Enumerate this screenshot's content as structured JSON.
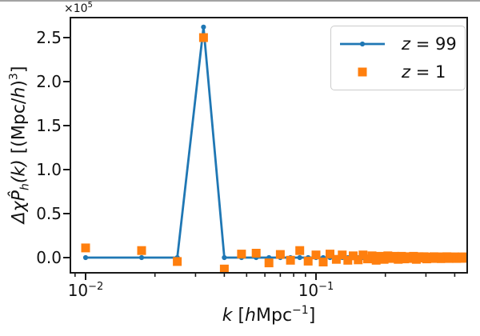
{
  "figure": {
    "offset_text": {
      "base": "×10",
      "exp": "5"
    },
    "xlabel": {
      "var1": "k",
      "mid1": " [",
      "var2": "h",
      "unit": "Mpc",
      "exp": "−1",
      "close": "]"
    },
    "ylabel": {
      "p1": "Δχ",
      "p2": "P̂",
      "sub": "h",
      "p3": "(k)",
      "p4": " [(Mpc/",
      "p5": "h",
      "p6": ")",
      "sup": "3",
      "p7": "]"
    },
    "legend": {
      "items": [
        {
          "var": "z",
          "rest": " = 99",
          "series": "z99"
        },
        {
          "var": "z",
          "rest": " = 1",
          "series": "z1"
        }
      ]
    },
    "colors": {
      "z99": "#1f77b4",
      "z1": "#ff7f0e",
      "spine": "#1a1a1a",
      "text": "#111111",
      "top_border": "#a3a3a3"
    }
  },
  "chart_data": {
    "type": "line",
    "xscale": "log",
    "title": "",
    "xlabel": "k [hMpc^-1]",
    "ylabel": "Δχ P̂_h(k) [(Mpc/h)^3]",
    "unit_multiplier": 100000,
    "xlim": [
      0.0086,
      0.45
    ],
    "ylim_e5": [
      -0.173,
      2.727
    ],
    "grid": false,
    "legend_position": "upper-right",
    "x": [
      0.01,
      0.0175,
      0.025,
      0.0325,
      0.04,
      0.0475,
      0.055,
      0.0625,
      0.07,
      0.0775,
      0.085,
      0.0925,
      0.1,
      0.1075,
      0.115,
      0.1225,
      0.13,
      0.1375,
      0.145,
      0.1525,
      0.16,
      0.1675,
      0.175,
      0.1825,
      0.19,
      0.1975,
      0.205,
      0.2125,
      0.22,
      0.2275,
      0.235,
      0.2425,
      0.25,
      0.2575,
      0.265,
      0.2725,
      0.28,
      0.2875,
      0.295,
      0.3025,
      0.31,
      0.3175,
      0.325,
      0.3325,
      0.34,
      0.3475,
      0.355,
      0.3625,
      0.37,
      0.3775,
      0.385,
      0.3925,
      0.4,
      0.4075,
      0.415,
      0.4225,
      0.43,
      0.4375,
      0.445
    ],
    "series": [
      {
        "name": "z = 99",
        "style": "line+marker",
        "marker": "circle",
        "color": "#1f77b4",
        "values_e5": [
          0,
          0,
          0,
          2.62,
          0,
          0,
          0,
          0,
          0,
          0,
          0,
          0,
          0,
          0,
          0,
          0,
          0,
          0,
          0,
          0,
          0,
          0,
          0,
          0,
          0,
          0,
          0,
          0,
          0,
          0,
          0,
          0,
          0,
          0,
          0,
          0,
          0,
          0,
          0,
          0,
          0,
          0,
          0,
          0,
          0,
          0,
          0,
          0,
          0,
          0,
          0,
          0,
          0,
          0,
          0,
          0,
          0,
          0,
          0
        ]
      },
      {
        "name": "z = 1",
        "style": "scatter",
        "marker": "square",
        "color": "#ff7f0e",
        "values_e5": [
          0.11,
          0.08,
          -0.045,
          2.5,
          -0.13,
          0.04,
          0.05,
          -0.06,
          0.035,
          -0.03,
          0.08,
          -0.04,
          0.03,
          -0.05,
          0.04,
          -0.02,
          0.03,
          -0.03,
          0.02,
          -0.025,
          0.03,
          -0.015,
          0.02,
          -0.03,
          0.015,
          -0.02,
          0.02,
          -0.01,
          0.015,
          -0.02,
          0.015,
          -0.015,
          0.01,
          -0.01,
          0.015,
          -0.02,
          0.01,
          -0.005,
          0.01,
          -0.015,
          0.005,
          -0.01,
          0.01,
          -0.005,
          0.008,
          -0.012,
          0.006,
          -0.008,
          0.01,
          -0.01,
          0.005,
          -0.008,
          0.008,
          -0.01,
          0.004,
          -0.006,
          0.008,
          -0.008,
          0.005
        ]
      }
    ],
    "xticks": [
      {
        "value": 0.01,
        "base": "10",
        "exp": "−2"
      },
      {
        "value": 0.1,
        "base": "10",
        "exp": "−1"
      }
    ],
    "xminorticks": [
      0.009,
      0.02,
      0.03,
      0.04,
      0.05,
      0.06,
      0.07,
      0.08,
      0.09,
      0.2,
      0.3,
      0.4
    ],
    "yticks": [
      {
        "value_e5": 0.0,
        "label": "0.0"
      },
      {
        "value_e5": 0.5,
        "label": "0.5"
      },
      {
        "value_e5": 1.0,
        "label": "1.0"
      },
      {
        "value_e5": 1.5,
        "label": "1.5"
      },
      {
        "value_e5": 2.0,
        "label": "2.0"
      },
      {
        "value_e5": 2.5,
        "label": "2.5"
      }
    ]
  }
}
